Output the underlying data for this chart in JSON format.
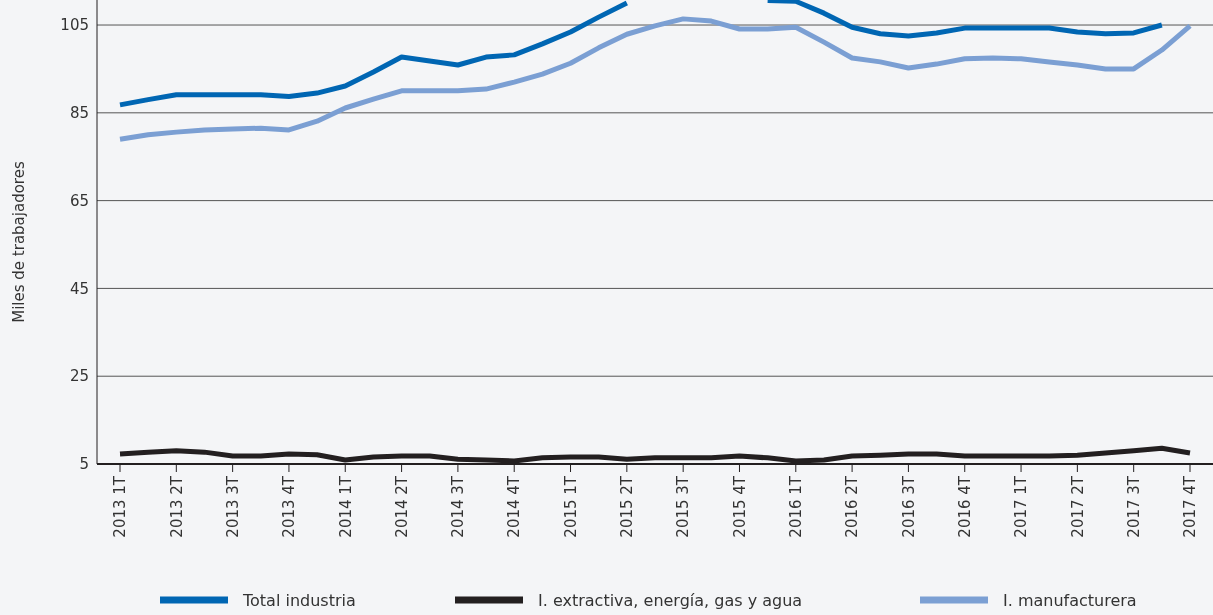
{
  "chart_data": {
    "type": "line",
    "ylabel": "Miles de trabajadores",
    "categories": [
      "2013 1T",
      null,
      "2013 2T",
      null,
      "2013 3T",
      null,
      "2013 4T",
      null,
      "2014 1T",
      null,
      "2014 2T",
      null,
      "2014 3T",
      null,
      "2014 4T",
      null,
      "2015 1T",
      null,
      "2015 2T",
      null,
      "2015 3T",
      null,
      "2015 4T",
      null,
      "2016 1T",
      null,
      "2016 2T",
      null,
      "2016 3T",
      null,
      "2016 4T",
      null,
      "2017 1T",
      null,
      "2017 2T",
      null,
      "2017 3T",
      null,
      "2017 4T"
    ],
    "series": [
      {
        "name": "Total industria",
        "color": "#0066b3",
        "values": [
          86.8,
          88.0,
          89.1,
          89.1,
          89.1,
          89.1,
          88.7,
          89.5,
          91.1,
          94.3,
          97.7,
          96.8,
          95.9,
          97.7,
          98.2,
          100.7,
          103.4,
          106.8,
          110.0,
          null,
          null,
          null,
          null,
          110.6,
          110.4,
          107.7,
          104.5,
          103.0,
          102.5,
          103.2,
          104.3,
          104.3,
          104.3,
          104.3,
          103.4,
          103.0,
          103.2,
          105.0,
          null
        ]
      },
      {
        "name": "I. extractiva, energía, gas y agua",
        "color": "#231f20",
        "values": [
          7.3,
          7.7,
          8.0,
          7.7,
          6.8,
          6.8,
          7.3,
          7.1,
          5.9,
          6.6,
          6.8,
          6.8,
          6.1,
          5.9,
          5.7,
          6.4,
          6.6,
          6.6,
          6.1,
          6.4,
          6.4,
          6.4,
          6.8,
          6.4,
          5.7,
          5.9,
          6.8,
          7.0,
          7.3,
          7.3,
          6.8,
          6.8,
          6.8,
          6.8,
          7.0,
          7.5,
          8.0,
          8.6,
          7.5
        ]
      },
      {
        "name": "I. manufacturera",
        "color": "#7b9fd3",
        "values": [
          79.0,
          80.0,
          80.6,
          81.1,
          81.3,
          81.5,
          81.1,
          83.1,
          86.1,
          88.1,
          90.0,
          90.0,
          90.0,
          90.4,
          92.0,
          93.8,
          96.3,
          99.8,
          102.9,
          104.8,
          106.4,
          105.9,
          104.1,
          104.1,
          104.5,
          101.1,
          97.5,
          96.6,
          95.2,
          96.1,
          97.3,
          97.5,
          97.3,
          96.6,
          95.9,
          95.0,
          95.0,
          99.3,
          104.8
        ]
      }
    ],
    "ylim": [
      5,
      110.7
    ],
    "yticks": [
      5,
      25,
      45,
      65,
      85,
      105
    ],
    "grid": "y",
    "legend": "bottom",
    "marker": "none",
    "line_style": "solid"
  }
}
